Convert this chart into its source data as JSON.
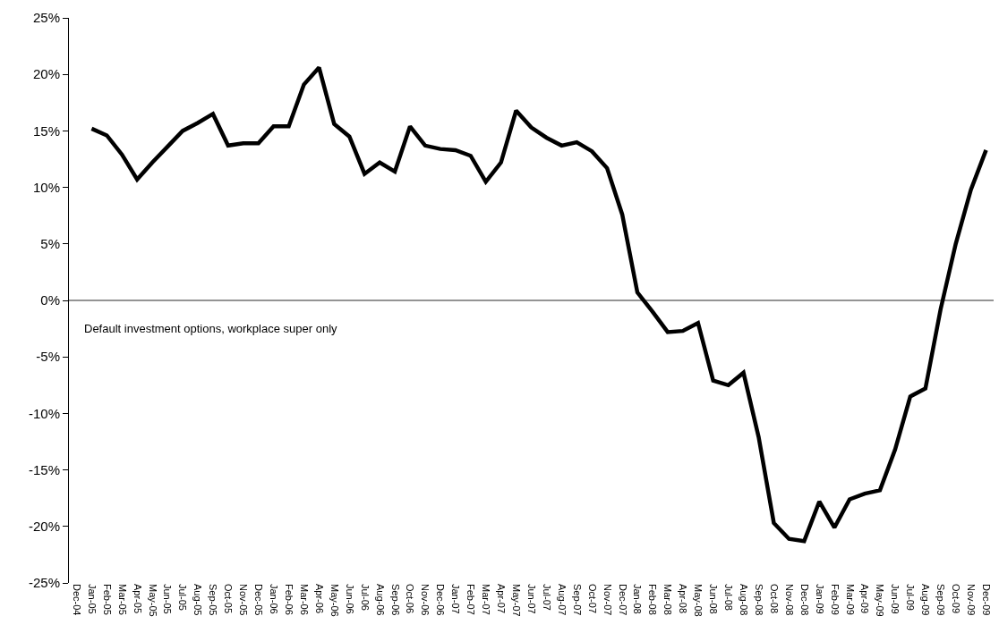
{
  "chart_data": {
    "type": "line",
    "categories": [
      "Dec-04",
      "Jan-05",
      "Feb-05",
      "Mar-05",
      "Apr-05",
      "May-05",
      "Jun-05",
      "Jul-05",
      "Aug-05",
      "Sep-05",
      "Oct-05",
      "Nov-05",
      "Dec-05",
      "Jan-06",
      "Feb-06",
      "Mar-06",
      "Apr-06",
      "May-06",
      "Jun-06",
      "Jul-06",
      "Aug-06",
      "Sep-06",
      "Oct-06",
      "Nov-06",
      "Dec-06",
      "Jan-07",
      "Feb-07",
      "Mar-07",
      "Apr-07",
      "May-07",
      "Jun-07",
      "Jul-07",
      "Aug-07",
      "Sep-07",
      "Oct-07",
      "Nov-07",
      "Dec-07",
      "Jan-08",
      "Feb-08",
      "Mar-08",
      "Apr-08",
      "May-08",
      "Jun-08",
      "Jul-08",
      "Aug-08",
      "Sep-08",
      "Oct-08",
      "Nov-08",
      "Dec-08",
      "Jan-09",
      "Feb-09",
      "Mar-09",
      "Apr-09",
      "May-09",
      "Jun-09",
      "Jul-09",
      "Aug-09",
      "Sep-09",
      "Oct-09",
      "Nov-09",
      "Dec-09"
    ],
    "series": [
      {
        "color": "#000000",
        "values": [
          null,
          15.2,
          14.6,
          12.9,
          10.7,
          12.2,
          13.6,
          15.0,
          15.7,
          16.5,
          13.7,
          13.9,
          13.9,
          15.4,
          15.4,
          19.1,
          20.6,
          15.6,
          14.5,
          11.2,
          12.2,
          11.4,
          15.4,
          13.7,
          13.4,
          13.3,
          12.8,
          10.5,
          12.2,
          16.8,
          15.3,
          14.4,
          13.7,
          14.0,
          13.2,
          11.7,
          7.6,
          0.7,
          -1.0,
          -2.8,
          -2.7,
          -2.0,
          -7.1,
          -7.5,
          -6.4,
          -12.1,
          -19.7,
          -21.1,
          -21.3,
          -17.8,
          -20.1,
          -17.6,
          -17.1,
          -16.8,
          -13.2,
          -8.5,
          -7.8,
          -0.8,
          5.0,
          9.8,
          13.3
        ]
      }
    ],
    "ylim": [
      -25,
      25
    ],
    "yticks": [
      {
        "value": -25,
        "label": "-25%"
      },
      {
        "value": -20,
        "label": "-20%"
      },
      {
        "value": -15,
        "label": "-15%"
      },
      {
        "value": -10,
        "label": "-10%"
      },
      {
        "value": -5,
        "label": "-5%"
      },
      {
        "value": 0,
        "label": "0%"
      },
      {
        "value": 5,
        "label": "5%"
      },
      {
        "value": 10,
        "label": "10%"
      },
      {
        "value": 15,
        "label": "15%"
      },
      {
        "value": 20,
        "label": "20%"
      },
      {
        "value": 25,
        "label": "25%"
      }
    ],
    "ref_lines": [
      {
        "axis": "y",
        "value": 0,
        "color": "#707070"
      }
    ],
    "annotations": [
      "Default investment options, workplace super only"
    ],
    "grid": false,
    "legend": false,
    "marker": "none",
    "line_style": "solid"
  }
}
